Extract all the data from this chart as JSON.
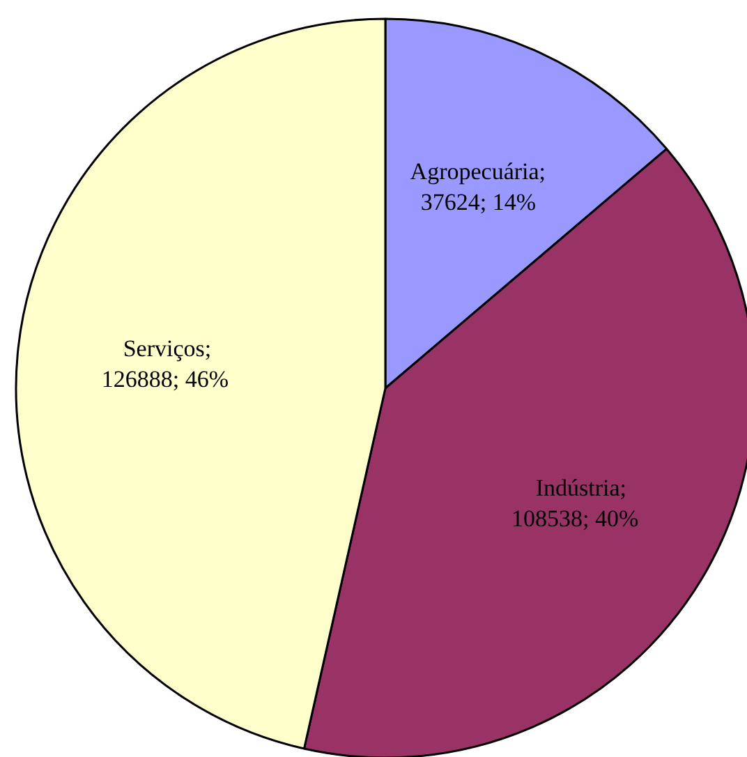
{
  "chart_data": {
    "type": "pie",
    "categories": [
      "Agropecuária",
      "Indústria",
      "Serviços"
    ],
    "values": [
      37624,
      108538,
      126888
    ],
    "colors": [
      "#9999ff",
      "#993366",
      "#ffffcc"
    ],
    "value_labels": [
      ";\n37624; 14%",
      ";\n108538; 40%",
      ";\n126888; 46%"
    ],
    "legend": false
  }
}
